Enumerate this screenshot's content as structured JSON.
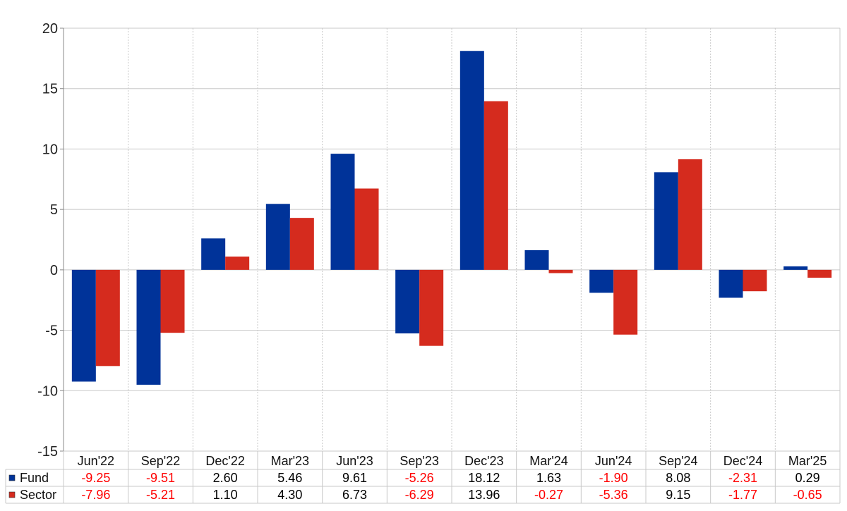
{
  "colors": {
    "fund": "#003399",
    "sector": "#d52b1e",
    "negative_text": "#ff0000",
    "positive_text": "#000000",
    "grid": "#c8c8c8"
  },
  "chart_data": {
    "type": "bar",
    "categories": [
      "Jun'22",
      "Sep'22",
      "Dec'22",
      "Mar'23",
      "Jun'23",
      "Sep'23",
      "Dec'23",
      "Mar'24",
      "Jun'24",
      "Sep'24",
      "Dec'24",
      "Mar'25"
    ],
    "series": [
      {
        "name": "Fund",
        "values": [
          -9.25,
          -9.51,
          2.6,
          5.46,
          9.61,
          -5.26,
          18.12,
          1.63,
          -1.9,
          8.08,
          -2.31,
          0.29
        ],
        "labels": [
          "-9.25",
          "-9.51",
          "2.60",
          "5.46",
          "9.61",
          "-5.26",
          "18.12",
          "1.63",
          "-1.90",
          "8.08",
          "-2.31",
          "0.29"
        ]
      },
      {
        "name": "Sector",
        "values": [
          -7.96,
          -5.21,
          1.1,
          4.3,
          6.73,
          -6.29,
          13.96,
          -0.27,
          -5.36,
          9.15,
          -1.77,
          -0.65
        ],
        "labels": [
          "-7.96",
          "-5.21",
          "1.10",
          "4.30",
          "6.73",
          "-6.29",
          "13.96",
          "-0.27",
          "-5.36",
          "9.15",
          "-1.77",
          "-0.65"
        ]
      }
    ],
    "ylim": [
      -15,
      20
    ],
    "yticks": [
      "20",
      "15",
      "10",
      "5",
      "0",
      "-5",
      "-10",
      "-15"
    ],
    "ytick_values": [
      20,
      15,
      10,
      5,
      0,
      -5,
      -10,
      -15
    ],
    "grid": true,
    "legend": "table-bottom"
  }
}
